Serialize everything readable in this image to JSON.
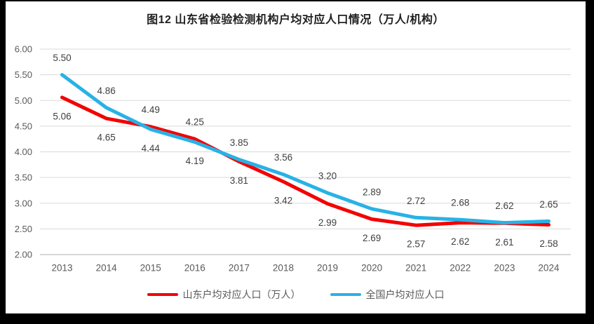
{
  "chart_data": {
    "type": "line",
    "title": "图12 山东省检验检测机构户均对应人口情况（万人/机构）",
    "categories": [
      "2013",
      "2014",
      "2015",
      "2016",
      "2017",
      "2018",
      "2019",
      "2020",
      "2021",
      "2022",
      "2023",
      "2024"
    ],
    "series": [
      {
        "name": "山东户均对应人口（万人）",
        "color": "#f30000",
        "values": [
          5.06,
          4.65,
          4.49,
          4.25,
          3.81,
          3.42,
          2.99,
          2.69,
          2.57,
          2.62,
          2.61,
          2.58
        ],
        "labels": [
          "5.06",
          "4.65",
          "4.49",
          "4.25",
          "3.81",
          "3.42",
          "2.99",
          "2.69",
          "2.57",
          "2.62",
          "2.61",
          "2.58"
        ]
      },
      {
        "name": "全国户均对应人口",
        "color": "#28b2e6",
        "values": [
          5.5,
          4.86,
          4.44,
          4.19,
          3.85,
          3.56,
          3.2,
          2.89,
          2.72,
          2.68,
          2.62,
          2.65
        ],
        "labels": [
          "5.50",
          "4.86",
          "4.44",
          "4.19",
          "3.85",
          "3.56",
          "3.20",
          "2.89",
          "2.72",
          "2.68",
          "2.62",
          "2.65"
        ]
      }
    ],
    "ylim": [
      2.0,
      6.0
    ],
    "y_ticks": [
      "6.00",
      "5.50",
      "5.00",
      "4.50",
      "4.00",
      "3.50",
      "3.00",
      "2.50",
      "2.00"
    ],
    "grid": true,
    "legend_position": "bottom",
    "data_labels": "shown, upper series above line, lower series below line"
  },
  "colors": {
    "frame_background": "#000000",
    "surface": "#ffffff",
    "gridline": "#d9d9d9",
    "axis_line": "#bfbfbf",
    "tick_text": "#595959",
    "data_label_text": "#3f3f3f",
    "title_text": "#1f1f1f"
  }
}
